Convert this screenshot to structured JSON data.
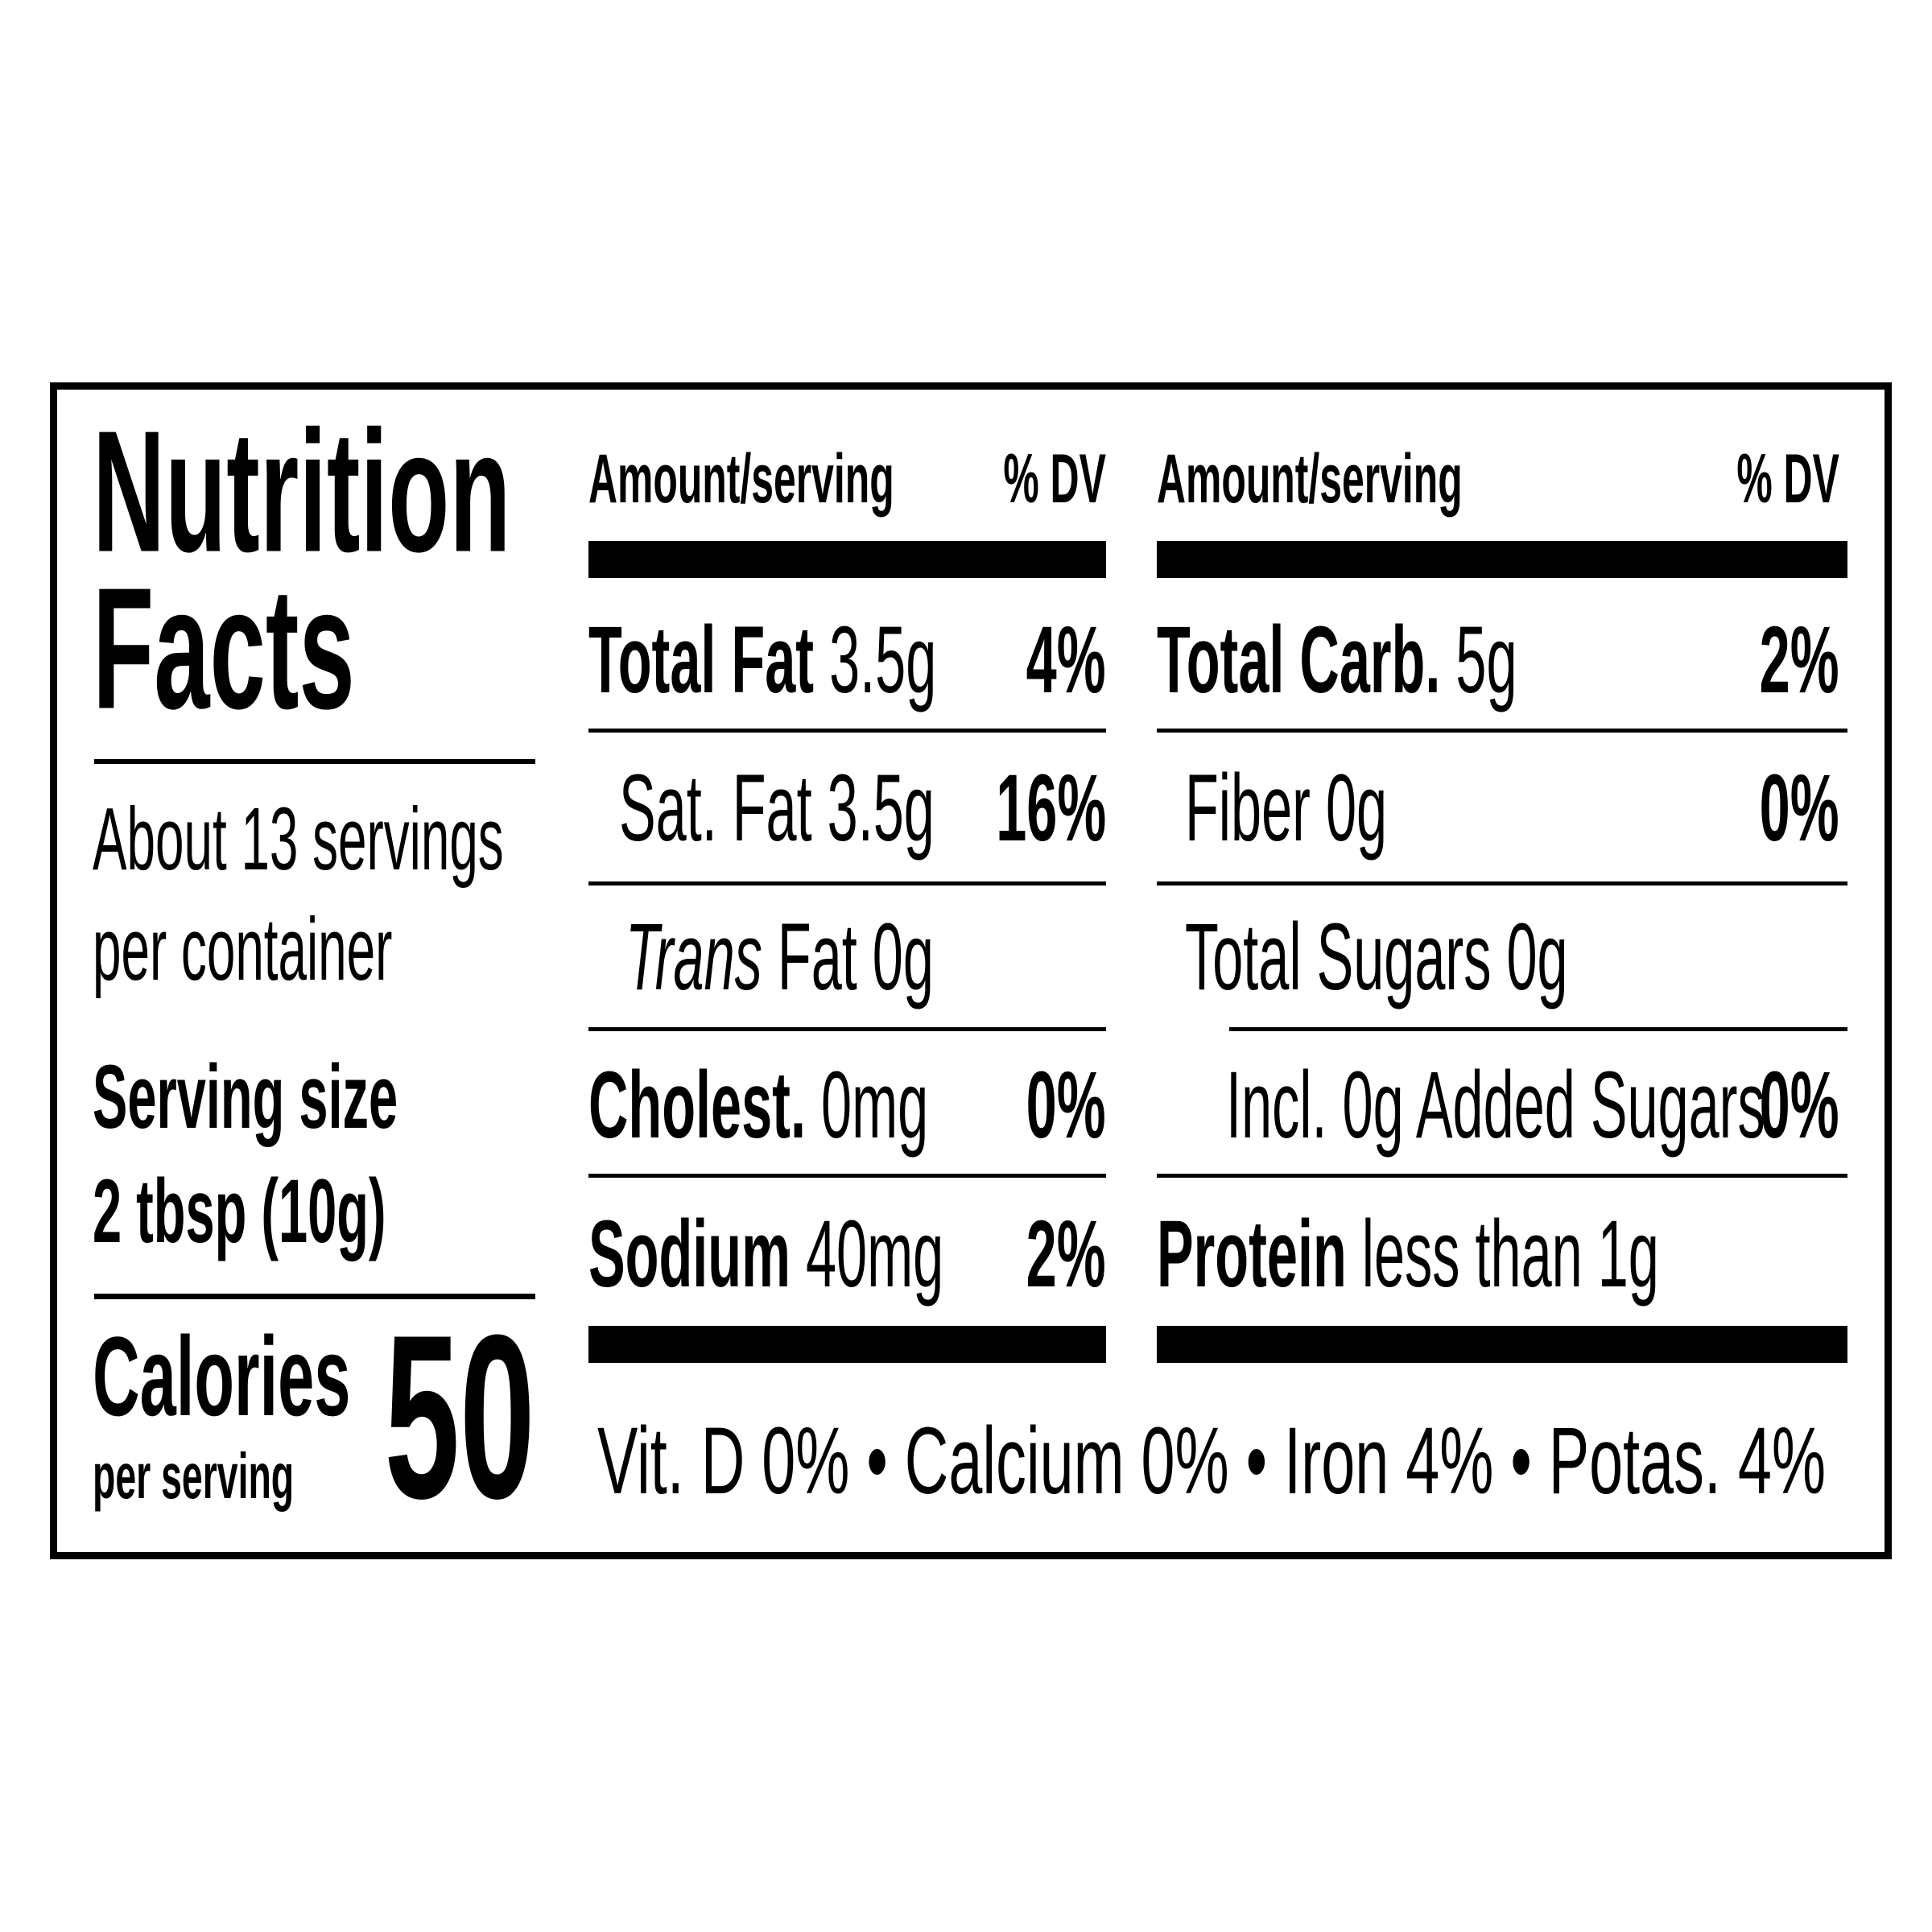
{
  "title_line1": "Nutrition",
  "title_line2": "Facts",
  "servings_line1": "About 13 servings",
  "servings_line2": "per container",
  "serving_size_label": "Serving size",
  "serving_size_value": "2 tbsp (10g)",
  "calories_label": "Calories",
  "calories_sub": "per serving",
  "calories_value": "50",
  "left_col": {
    "header_amount": "Amount/serving",
    "header_dv": "% DV",
    "rows": [
      {
        "name": "Total Fat",
        "amount": "3.5g",
        "dv": "4%"
      },
      {
        "name": "Sat. Fat",
        "amount": "3.5g",
        "dv": "16%"
      },
      {
        "name_italic": "Trans",
        "name": "Fat",
        "amount": "0g"
      },
      {
        "name": "Cholest.",
        "amount": "0mg",
        "dv": "0%"
      },
      {
        "name": "Sodium",
        "amount": "40mg",
        "dv": "2%"
      }
    ]
  },
  "right_col": {
    "header_amount": "Amount/serving",
    "header_dv": "% DV",
    "rows": [
      {
        "name": "Total Carb.",
        "amount": "5g",
        "dv": "2%"
      },
      {
        "name": "Fiber",
        "amount": "0g",
        "dv": "0%"
      },
      {
        "name": "Total Sugars",
        "amount": "0g"
      },
      {
        "name": "Incl. 0g Added Sugars",
        "dv": "0%"
      },
      {
        "name": "Protein",
        "amount": "less than 1g"
      }
    ]
  },
  "vitamins": "Vit. D 0% • Calcium 0% • Iron 4% • Potas. 4%"
}
